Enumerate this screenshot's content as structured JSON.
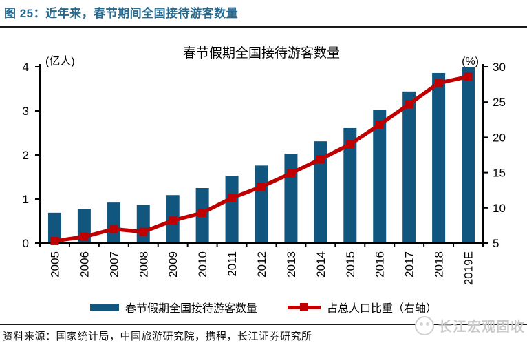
{
  "header": {
    "title": "图 25：近年来，春节期间全国接待游客数量"
  },
  "chart_data": {
    "type": "bar",
    "title": "春节假期全国接待游客数量",
    "categories": [
      "2005",
      "2006",
      "2007",
      "2008",
      "2009",
      "2010",
      "2011",
      "2012",
      "2013",
      "2014",
      "2015",
      "2016",
      "2017",
      "2018",
      "2019E"
    ],
    "series": [
      {
        "name": "春节假期全国接待游客数量",
        "type": "bar",
        "axis": "left",
        "color": "#11567F",
        "values": [
          0.69,
          0.78,
          0.92,
          0.87,
          1.09,
          1.25,
          1.53,
          1.76,
          2.03,
          2.31,
          2.61,
          3.02,
          3.44,
          3.86,
          4.0
        ]
      },
      {
        "name": "占总人口比重（右轴）",
        "type": "line",
        "axis": "right",
        "color": "#C00000",
        "values": [
          5.3,
          5.9,
          7.0,
          6.6,
          8.2,
          9.3,
          11.4,
          13.0,
          14.9,
          16.9,
          19.0,
          21.8,
          24.7,
          27.7,
          28.6
        ]
      }
    ],
    "left_axis": {
      "label": "(亿人)",
      "min": 0,
      "max": 4,
      "ticks": [
        0,
        1,
        2,
        3,
        4
      ]
    },
    "right_axis": {
      "label": "(%)",
      "min": 5,
      "max": 30,
      "ticks": [
        5,
        10,
        15,
        20,
        25,
        30
      ]
    },
    "legend_position": "bottom",
    "grid": false
  },
  "footer": {
    "source": "资料来源：国家统计局，中国旅游研究院，携程，长江证券研究所"
  },
  "watermark": {
    "text": "长江宏观固收",
    "logo": "changjiang-circle-logo"
  },
  "colors": {
    "title_blue": "#27698F",
    "bar_blue": "#11567F",
    "line_red": "#C00000",
    "axis_black": "#000000",
    "watermark_gray": "#C9C9C9"
  }
}
